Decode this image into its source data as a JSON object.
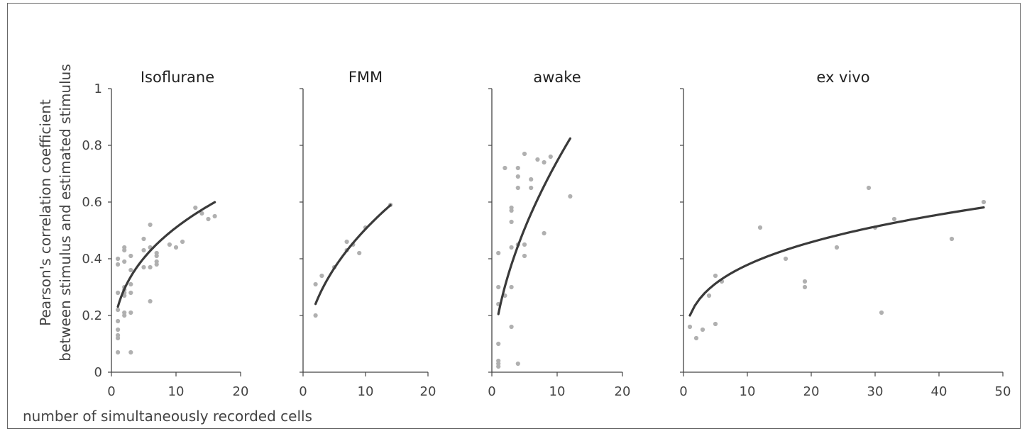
{
  "ylabel_line1": "Pearson's correlation coefficient",
  "ylabel_line2": "between stimulus and estimated stimulus",
  "xlabel": "number of simultaneously recorded cells",
  "colors": {
    "points": "#b0b0b0",
    "fit": "#3a3a3a",
    "axis": "#444444"
  },
  "chart_data": [
    {
      "type": "scatter",
      "title": "Isoflurane",
      "xlim": [
        0,
        20
      ],
      "ylim": [
        0,
        1
      ],
      "xticks": [
        0,
        10,
        20
      ],
      "yticks": [
        0,
        0.2,
        0.4,
        0.6,
        0.8,
        1
      ],
      "ytick_labels": [
        "0",
        "0.2",
        "0.4",
        "0.6",
        "0.8",
        "1"
      ],
      "points": [
        [
          1,
          0.4
        ],
        [
          1,
          0.38
        ],
        [
          1,
          0.28
        ],
        [
          1,
          0.22
        ],
        [
          1,
          0.18
        ],
        [
          1,
          0.15
        ],
        [
          1,
          0.13
        ],
        [
          1,
          0.12
        ],
        [
          1,
          0.07
        ],
        [
          2,
          0.44
        ],
        [
          2,
          0.43
        ],
        [
          2,
          0.39
        ],
        [
          2,
          0.3
        ],
        [
          2,
          0.29
        ],
        [
          2,
          0.28
        ],
        [
          2,
          0.27
        ],
        [
          2,
          0.21
        ],
        [
          2,
          0.2
        ],
        [
          3,
          0.41
        ],
        [
          3,
          0.36
        ],
        [
          3,
          0.31
        ],
        [
          3,
          0.28
        ],
        [
          3,
          0.21
        ],
        [
          3,
          0.07
        ],
        [
          5,
          0.47
        ],
        [
          5,
          0.43
        ],
        [
          5,
          0.37
        ],
        [
          6,
          0.52
        ],
        [
          6,
          0.44
        ],
        [
          6,
          0.37
        ],
        [
          6,
          0.25
        ],
        [
          7,
          0.42
        ],
        [
          7,
          0.41
        ],
        [
          7,
          0.39
        ],
        [
          7,
          0.38
        ],
        [
          9,
          0.45
        ],
        [
          10,
          0.44
        ],
        [
          11,
          0.46
        ],
        [
          13,
          0.58
        ],
        [
          14,
          0.56
        ],
        [
          15,
          0.54
        ],
        [
          16,
          0.55
        ]
      ],
      "fit": {
        "a": 0.231,
        "b": 0.344,
        "x_range": [
          1,
          16
        ]
      }
    },
    {
      "type": "scatter",
      "title": "FMM",
      "xlim": [
        0,
        20
      ],
      "ylim": [
        0,
        1
      ],
      "xticks": [
        0,
        10,
        20
      ],
      "yticks": [
        0,
        0.2,
        0.4,
        0.6,
        0.8,
        1
      ],
      "points": [
        [
          2,
          0.31
        ],
        [
          2,
          0.2
        ],
        [
          3,
          0.34
        ],
        [
          5,
          0.37
        ],
        [
          7,
          0.46
        ],
        [
          7,
          0.43
        ],
        [
          8,
          0.45
        ],
        [
          9,
          0.42
        ],
        [
          10,
          0.51
        ],
        [
          14,
          0.59
        ]
      ],
      "fit": {
        "a": 0.175,
        "b": 0.46,
        "x_range": [
          2,
          14
        ]
      }
    },
    {
      "type": "scatter",
      "title": "awake",
      "xlim": [
        0,
        20
      ],
      "ylim": [
        0,
        1
      ],
      "xticks": [
        0,
        10,
        20
      ],
      "yticks": [
        0,
        0.2,
        0.4,
        0.6,
        0.8,
        1
      ],
      "points": [
        [
          1,
          0.42
        ],
        [
          1,
          0.3
        ],
        [
          1,
          0.24
        ],
        [
          1,
          0.1
        ],
        [
          1,
          0.04
        ],
        [
          1,
          0.03
        ],
        [
          1,
          0.02
        ],
        [
          2,
          0.72
        ],
        [
          2,
          0.27
        ],
        [
          3,
          0.58
        ],
        [
          3,
          0.57
        ],
        [
          3,
          0.53
        ],
        [
          3,
          0.44
        ],
        [
          3,
          0.3
        ],
        [
          3,
          0.16
        ],
        [
          4,
          0.72
        ],
        [
          4,
          0.69
        ],
        [
          4,
          0.65
        ],
        [
          4,
          0.45
        ],
        [
          4,
          0.03
        ],
        [
          5,
          0.77
        ],
        [
          5,
          0.45
        ],
        [
          5,
          0.41
        ],
        [
          6,
          0.68
        ],
        [
          6,
          0.65
        ],
        [
          7,
          0.75
        ],
        [
          8,
          0.74
        ],
        [
          8,
          0.49
        ],
        [
          9,
          0.76
        ],
        [
          12,
          0.62
        ]
      ],
      "fit": {
        "a": 0.205,
        "b": 0.56,
        "x_range": [
          1,
          12
        ]
      }
    },
    {
      "type": "scatter",
      "title": "ex vivo",
      "xlim": [
        0,
        50
      ],
      "ylim": [
        0,
        1
      ],
      "xticks": [
        0,
        10,
        20,
        30,
        40,
        50
      ],
      "yticks": [
        0,
        0.2,
        0.4,
        0.6,
        0.8,
        1
      ],
      "points": [
        [
          1,
          0.16
        ],
        [
          2,
          0.12
        ],
        [
          3,
          0.15
        ],
        [
          4,
          0.27
        ],
        [
          5,
          0.34
        ],
        [
          5,
          0.17
        ],
        [
          6,
          0.32
        ],
        [
          12,
          0.51
        ],
        [
          16,
          0.4
        ],
        [
          19,
          0.32
        ],
        [
          19,
          0.3
        ],
        [
          24,
          0.44
        ],
        [
          29,
          0.65
        ],
        [
          30,
          0.51
        ],
        [
          31,
          0.21
        ],
        [
          33,
          0.54
        ],
        [
          42,
          0.47
        ],
        [
          47,
          0.6
        ]
      ],
      "fit": {
        "a": 0.2,
        "b": 0.277,
        "x_range": [
          1,
          47
        ]
      }
    }
  ]
}
